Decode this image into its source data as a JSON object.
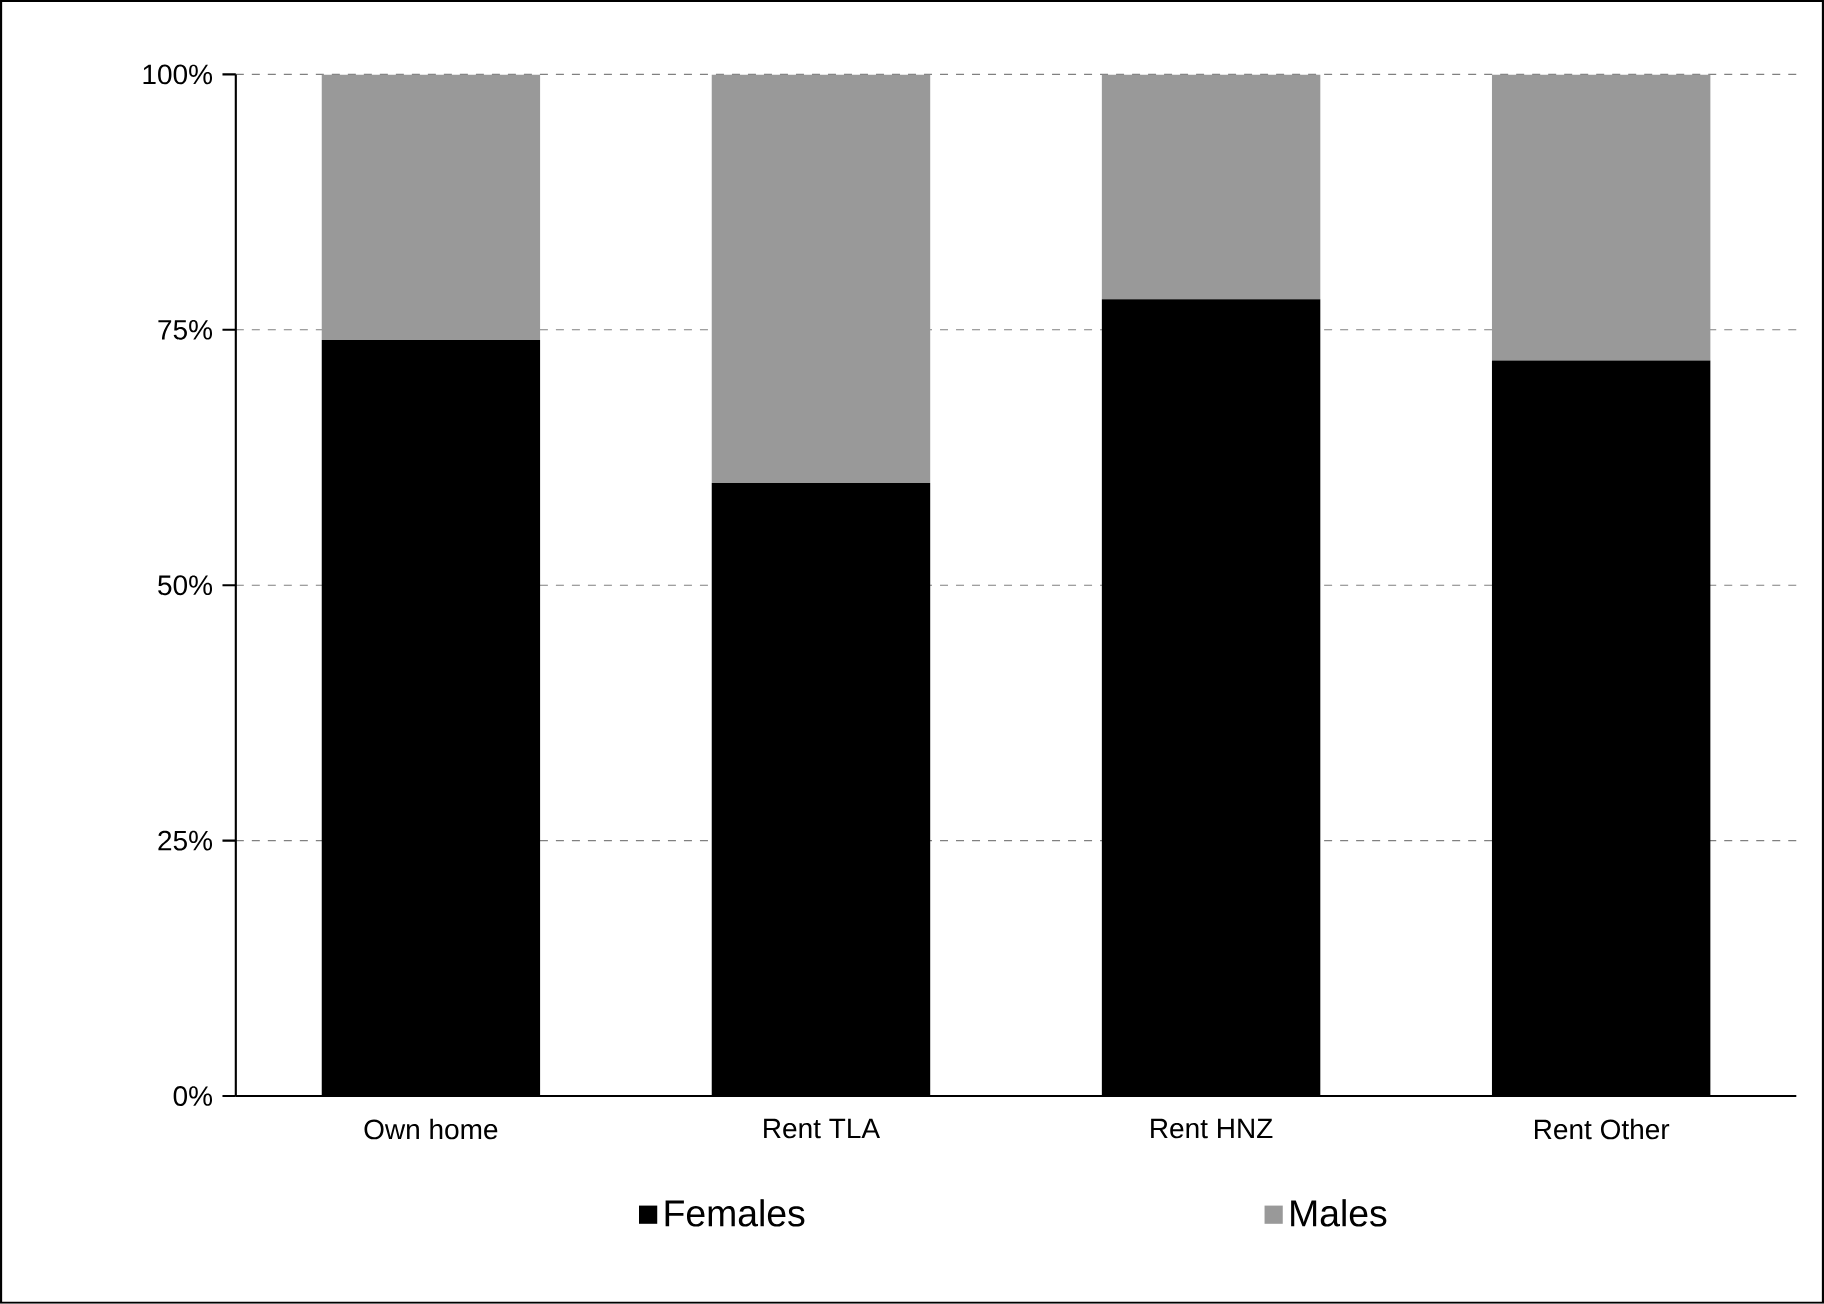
{
  "chart_data": {
    "type": "bar",
    "stacked": true,
    "categories": [
      "Own home",
      "Rent TLA",
      "Rent HNZ",
      "Rent Other"
    ],
    "series": [
      {
        "name": "Females",
        "color": "#000000",
        "values": [
          74,
          60,
          78,
          72
        ]
      },
      {
        "name": "Males",
        "color": "#999999",
        "values": [
          26,
          40,
          22,
          28
        ]
      }
    ],
    "ylim": [
      0,
      100
    ],
    "yticks": [
      {
        "value": 0,
        "label": "0%"
      },
      {
        "value": 25,
        "label": "25%"
      },
      {
        "value": 50,
        "label": "50%"
      },
      {
        "value": 75,
        "label": "75%"
      },
      {
        "value": 100,
        "label": "100%"
      }
    ],
    "grid": "y",
    "legend": "bottom"
  }
}
